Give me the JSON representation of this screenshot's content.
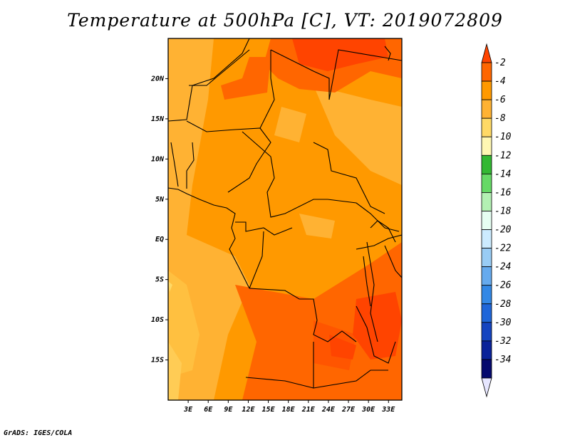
{
  "title": "Temperature at 500hPa [C], VT: 2019072809",
  "credit": "GrADS: IGES/COLA",
  "map": {
    "lat_ticks": [
      "20N",
      "15N",
      "10N",
      "5N",
      "EQ",
      "5S",
      "10S",
      "15S"
    ],
    "lon_ticks": [
      "3E",
      "6E",
      "9E",
      "12E",
      "15E",
      "18E",
      "21E",
      "24E",
      "27E",
      "30E",
      "33E"
    ],
    "extent": {
      "lon": [
        0,
        35
      ],
      "lat": [
        -20,
        25
      ]
    }
  },
  "colorbar": {
    "labels": [
      "-2",
      "-4",
      "-6",
      "-8",
      "-10",
      "-12",
      "-14",
      "-16",
      "-18",
      "-20",
      "-22",
      "-24",
      "-26",
      "-28",
      "-30",
      "-32",
      "-34"
    ],
    "colors": [
      "#ff4400",
      "#ff6600",
      "#ff9900",
      "#ffb233",
      "#ffd966",
      "#fff7b3",
      "#33b833",
      "#66d966",
      "#b3f0b3",
      "#e6fff2",
      "#ccebff",
      "#99ccf5",
      "#66aaee",
      "#3388e6",
      "#1f66d9",
      "#1444c0",
      "#0a2299",
      "#050a6e",
      "#e6e6ff"
    ]
  }
}
